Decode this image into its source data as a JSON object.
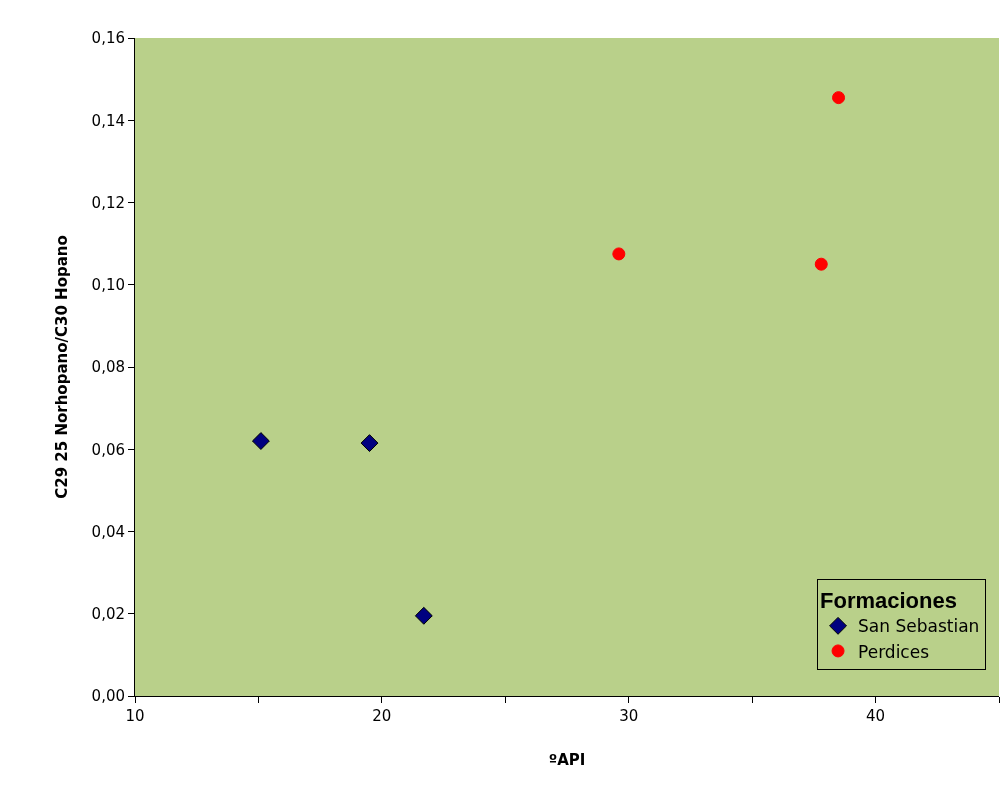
{
  "chart_data": {
    "type": "scatter",
    "xlabel": "ºAPI",
    "ylabel": "C29 25 Norhopano/C30 Hopano",
    "legend_title": "Formaciones",
    "series": [
      {
        "name": "San Sebastian",
        "color": "#000080",
        "marker": "diamond",
        "x": [
          15.1,
          19.5,
          21.7
        ],
        "values": [
          0.062,
          0.0615,
          0.0195
        ]
      },
      {
        "name": "Perdices",
        "color": "#ff0000",
        "marker": "circle",
        "x": [
          29.6,
          37.8,
          38.5
        ],
        "values": [
          0.1075,
          0.105,
          0.1455
        ]
      }
    ],
    "xlim": [
      10,
      45
    ],
    "xticks": [
      10,
      {
        "value": 15,
        "label": null
      },
      20,
      {
        "value": 25,
        "label": null
      },
      30,
      {
        "value": 35,
        "label": null
      },
      40,
      {
        "value": 45,
        "label": null
      }
    ],
    "ylim": [
      0,
      0.16
    ],
    "yticks": [
      {
        "value": 0,
        "label": "0,00"
      },
      {
        "value": 0.02,
        "label": "0,02"
      },
      {
        "value": 0.04,
        "label": "0,04"
      },
      {
        "value": 0.06,
        "label": "0,06"
      },
      {
        "value": 0.08,
        "label": "0,08"
      },
      {
        "value": 0.1,
        "label": "0,10"
      },
      {
        "value": 0.12,
        "label": "0,12"
      },
      {
        "value": 0.14,
        "label": "0,14"
      },
      {
        "value": 0.16,
        "label": "0,16"
      }
    ],
    "grid": false,
    "legend": "bottom right"
  }
}
